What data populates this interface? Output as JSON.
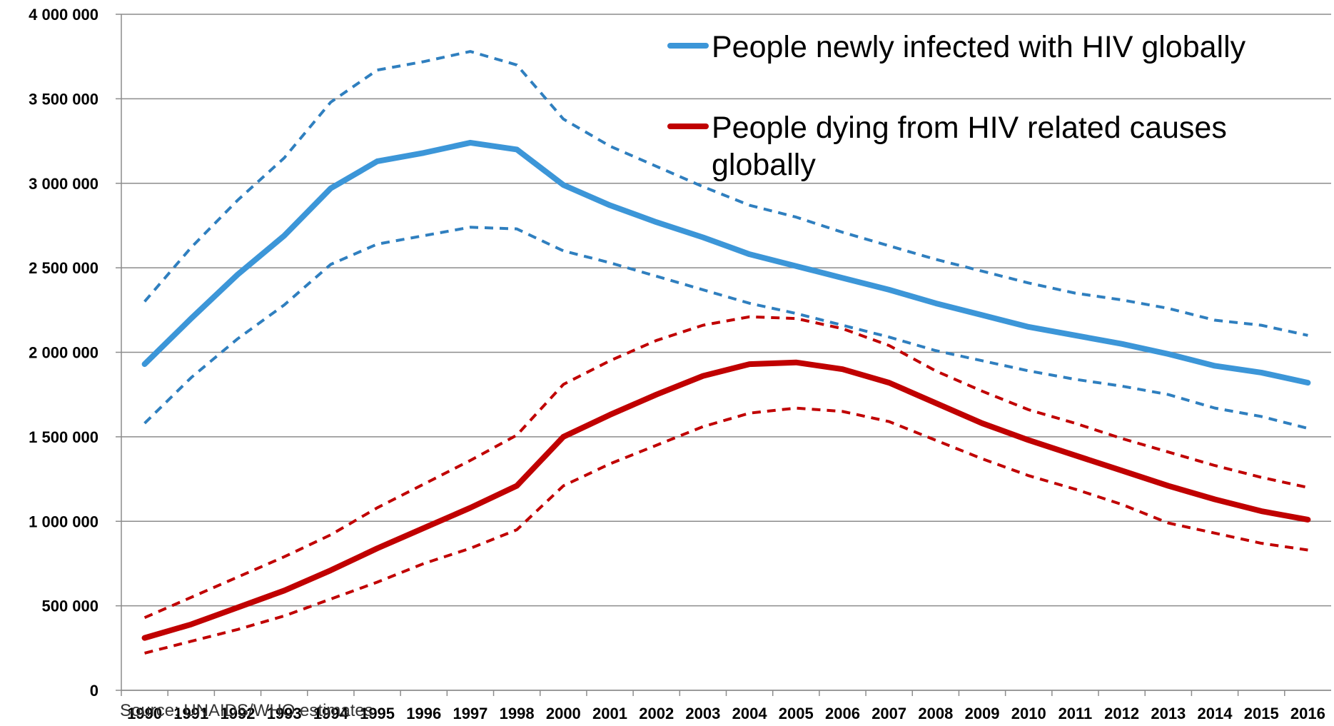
{
  "chart_data": {
    "type": "line",
    "categories": [
      "1990",
      "1991",
      "1992",
      "1993",
      "1994",
      "1995",
      "1996",
      "1997",
      "1998",
      "2000",
      "2001",
      "2002",
      "2003",
      "2004",
      "2005",
      "2006",
      "2007",
      "2008",
      "2009",
      "2010",
      "2011",
      "2012",
      "2013",
      "2014",
      "2015",
      "2016"
    ],
    "series": [
      {
        "name": "People newly infected with HIV globally",
        "color": "#3c96d8",
        "values": [
          1930000,
          2200000,
          2460000,
          2690000,
          2970000,
          3130000,
          3180000,
          3240000,
          3200000,
          2990000,
          2870000,
          2770000,
          2680000,
          2580000,
          2510000,
          2440000,
          2370000,
          2290000,
          2220000,
          2150000,
          2100000,
          2050000,
          1990000,
          1920000,
          1880000,
          1820000
        ]
      },
      {
        "name": "People dying from HIV related causes globally",
        "color": "#c00000",
        "values": [
          310000,
          390000,
          490000,
          590000,
          710000,
          840000,
          960000,
          1080000,
          1210000,
          1500000,
          1630000,
          1750000,
          1860000,
          1930000,
          1940000,
          1900000,
          1820000,
          1700000,
          1580000,
          1480000,
          1390000,
          1300000,
          1210000,
          1130000,
          1060000,
          1010000
        ]
      },
      {
        "color": "#2f7fbf",
        "dashed": true,
        "values": [
          2300000,
          2620000,
          2900000,
          3150000,
          3480000,
          3670000,
          3720000,
          3780000,
          3700000,
          3380000,
          3220000,
          3100000,
          2980000,
          2870000,
          2800000,
          2710000,
          2630000,
          2550000,
          2480000,
          2410000,
          2350000,
          2310000,
          2260000,
          2190000,
          2160000,
          2100000
        ]
      },
      {
        "color": "#2f7fbf",
        "dashed": true,
        "values": [
          1580000,
          1850000,
          2080000,
          2280000,
          2520000,
          2640000,
          2690000,
          2740000,
          2730000,
          2600000,
          2530000,
          2450000,
          2370000,
          2290000,
          2230000,
          2160000,
          2090000,
          2010000,
          1950000,
          1890000,
          1840000,
          1800000,
          1750000,
          1670000,
          1620000,
          1550000
        ]
      },
      {
        "color": "#c00000",
        "dashed": true,
        "values": [
          430000,
          550000,
          670000,
          790000,
          920000,
          1080000,
          1220000,
          1360000,
          1510000,
          1810000,
          1950000,
          2070000,
          2160000,
          2210000,
          2200000,
          2140000,
          2040000,
          1890000,
          1770000,
          1660000,
          1580000,
          1490000,
          1410000,
          1330000,
          1260000,
          1200000
        ]
      },
      {
        "color": "#c00000",
        "dashed": true,
        "values": [
          220000,
          290000,
          360000,
          440000,
          540000,
          640000,
          750000,
          840000,
          950000,
          1210000,
          1340000,
          1450000,
          1560000,
          1640000,
          1670000,
          1650000,
          1590000,
          1480000,
          1370000,
          1270000,
          1190000,
          1100000,
          990000,
          930000,
          870000,
          830000
        ]
      }
    ],
    "ylim": [
      0,
      4000000
    ],
    "yticks": [
      0,
      {
        "value": 500000,
        "label": "500 000"
      },
      {
        "value": 1000000,
        "label": "1 000 000"
      },
      {
        "value": 1500000,
        "label": "1 500 000"
      },
      {
        "value": 2000000,
        "label": "2 000 000"
      },
      {
        "value": 2500000,
        "label": "2 500 000"
      },
      {
        "value": 3000000,
        "label": "3 000 000"
      },
      {
        "value": 3500000,
        "label": "3 500 000"
      },
      {
        "value": 4000000,
        "label": "4 000 000"
      }
    ],
    "grid": true,
    "legend": "top-right",
    "source": "Source: UNAIDS/WHO estimates"
  }
}
